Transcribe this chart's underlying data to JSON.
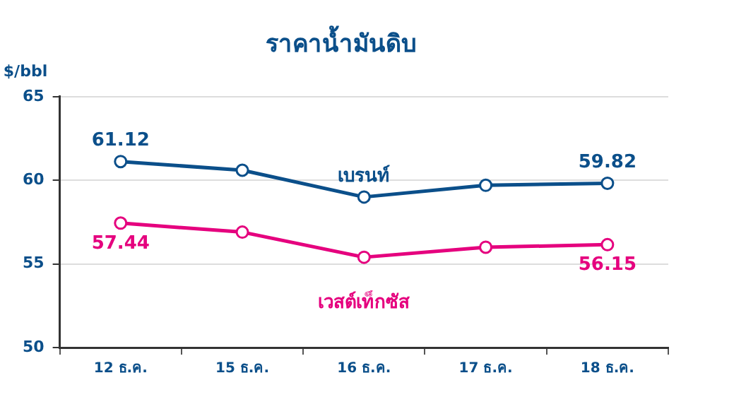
{
  "chart_data": {
    "type": "line",
    "title": "ราคาน้ำมันดิบ",
    "ylabel": "$/bbl",
    "categories": [
      "12 ธ.ค.",
      "15 ธ.ค.",
      "16 ธ.ค.",
      "17 ธ.ค.",
      "18 ธ.ค."
    ],
    "series": [
      {
        "name": "เบรนท์",
        "color": "#0b4f8a",
        "values": [
          61.12,
          60.6,
          59.0,
          59.7,
          59.82
        ],
        "value_labels": [
          "61.12",
          null,
          null,
          null,
          "59.82"
        ]
      },
      {
        "name": "เวสต์เท็กซัส",
        "color": "#e5007e",
        "values": [
          57.44,
          56.9,
          55.4,
          56.0,
          56.15
        ],
        "value_labels": [
          "57.44",
          null,
          null,
          null,
          "56.15"
        ]
      }
    ],
    "ylim": [
      50,
      65
    ],
    "yticks": [
      50,
      55,
      60,
      65
    ],
    "grid": "y",
    "legend": false,
    "marker": "circle",
    "line_style": "solid"
  }
}
